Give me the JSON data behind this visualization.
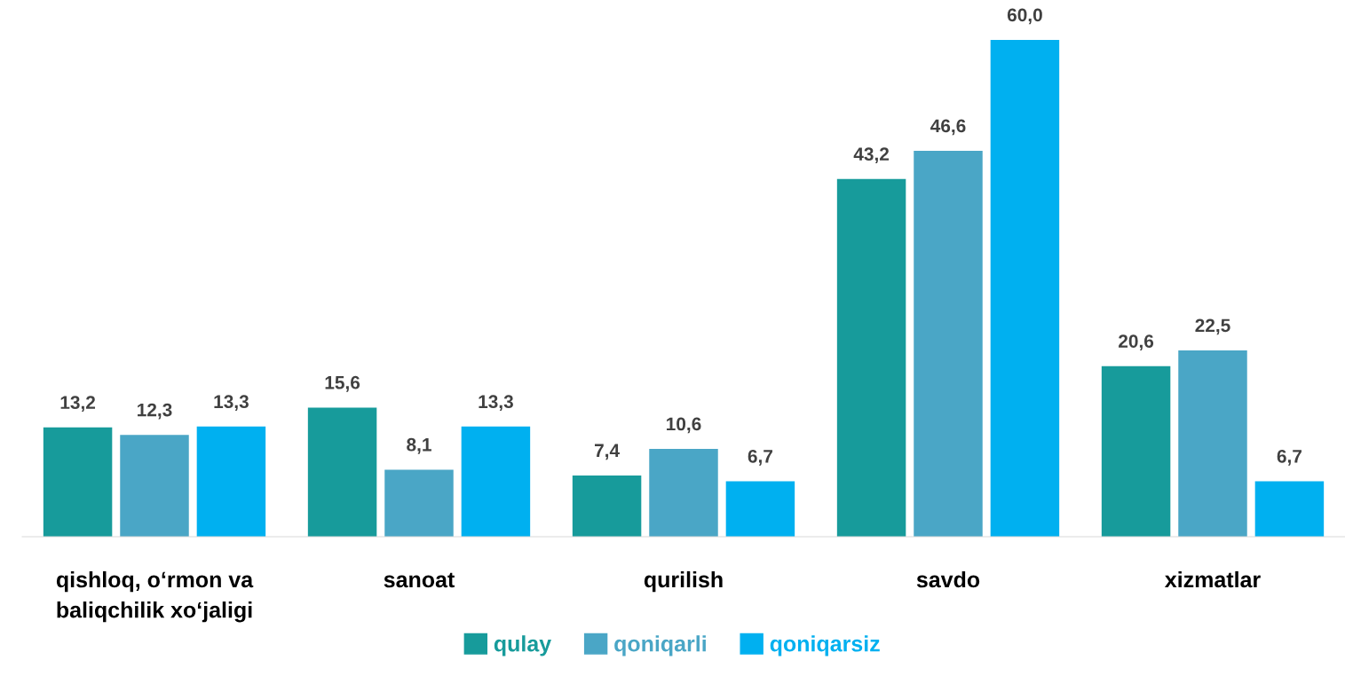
{
  "chart_data": {
    "type": "bar",
    "categories": [
      "qishloq, o‘rmon va\nbaliqchilik xo‘jaligi",
      "sanoat",
      "qurilish",
      "savdo",
      "xizmatlar"
    ],
    "series": [
      {
        "name": "qulay",
        "color": "#179b9b",
        "values": [
          13.2,
          15.6,
          7.4,
          43.2,
          20.6
        ],
        "value_labels": [
          "13,2",
          "15,6",
          "7,4",
          "43,2",
          "20,6"
        ]
      },
      {
        "name": "qoniqarli",
        "color": "#4aa6c6",
        "values": [
          12.3,
          8.1,
          10.6,
          46.6,
          22.5
        ],
        "value_labels": [
          "12,3",
          "8,1",
          "10,6",
          "46,6",
          "22,5"
        ]
      },
      {
        "name": "qoniqarsiz",
        "color": "#00b0f0",
        "values": [
          13.3,
          13.3,
          6.7,
          60.0,
          6.7
        ],
        "value_labels": [
          "13,3",
          "13,3",
          "6,7",
          "60,0",
          "6,7"
        ]
      }
    ],
    "legend": "bottom",
    "grid": false
  }
}
